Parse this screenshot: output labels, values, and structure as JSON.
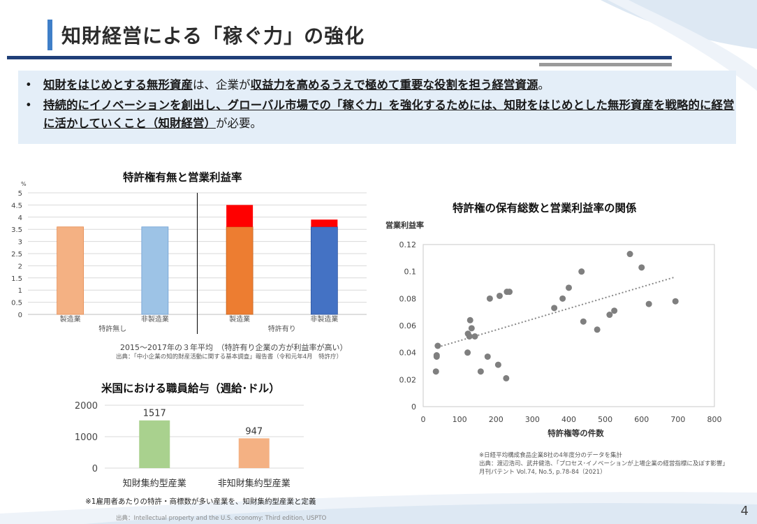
{
  "slide": {
    "title": "知財経営による「稼ぐ力」の強化",
    "page_number": "4"
  },
  "summary": {
    "bullet1": {
      "b1": "知財をはじめとする無形資産",
      "t1": "は、企業が",
      "b2": "収益力を高めるうえで",
      "b3": "極めて重要な役割を担う経営資源",
      "t2": "。"
    },
    "bullet2": {
      "b1": "持続的にイノベーションを創出し、グローバル市場での「稼ぐ力」を強化するためには、知財をはじめとした無形資産を戦略的に経営に活かしていくこと（知財経営）",
      "t1": "が必要。"
    }
  },
  "colors": {
    "accent": "#3f7fc8",
    "navy": "#1f3f78",
    "summary_bg": "#e4eef8"
  },
  "chart_data": [
    {
      "type": "bar",
      "title": "特許権有無と営業利益率",
      "ylabel": "%",
      "ylim": [
        0,
        5
      ],
      "yticks": [
        0,
        0.5,
        1,
        1.5,
        2,
        2.5,
        3,
        3.5,
        4,
        4.5,
        5
      ],
      "categories": [
        "製造業",
        "非製造業",
        "製造業",
        "非製造業"
      ],
      "groups": [
        "特許無し",
        "特許有り"
      ],
      "series": [
        {
          "values": [
            3.6,
            3.6,
            3.6,
            3.6
          ],
          "colors": [
            "#f4b183",
            "#9dc3e6",
            "#ed7d31",
            "#4472c4"
          ]
        },
        {
          "values": [
            0,
            0,
            0.9,
            0.3
          ],
          "color": "#ff0000"
        }
      ],
      "caption": "2015～2017年の３年平均　（特許有り企業の方が利益率が高い）",
      "source": "出典：「中小企業の知的財産活動に関する基本調査」報告書（令和元年4月　特許庁）"
    },
    {
      "type": "bar",
      "title": "米国における職員給与（週給･ドル）",
      "ylim": [
        0,
        2000
      ],
      "yticks": [
        0,
        1000,
        2000
      ],
      "categories": [
        "知財集約型産業",
        "非知財集約型産業"
      ],
      "values": [
        1517,
        947
      ],
      "data_labels": [
        "1517",
        "947"
      ],
      "colors": [
        "#a9d18e",
        "#f4b183"
      ],
      "note": "※1雇用者あたりの特許・商標数が多い産業を、知財集約型産業と定義",
      "source": "出典：Intellectual property and the U.S. economy: Third edition, USPTO"
    },
    {
      "type": "scatter",
      "title": "特許権の保有総数と営業利益率の関係",
      "ylabel": "営業利益率",
      "xlabel": "特許権等の件数",
      "xlim": [
        0,
        800
      ],
      "ylim": [
        0,
        0.12
      ],
      "xticks": [
        0,
        100,
        200,
        300,
        400,
        500,
        600,
        700,
        800
      ],
      "ytick_labels": [
        "0",
        "0.02",
        "0.04",
        "0.06",
        "0.08",
        "0.1",
        "0.12"
      ],
      "points": [
        [
          35,
          0.026
        ],
        [
          37,
          0.037
        ],
        [
          37,
          0.038
        ],
        [
          40,
          0.045
        ],
        [
          122,
          0.04
        ],
        [
          123,
          0.054
        ],
        [
          127,
          0.052
        ],
        [
          129,
          0.064
        ],
        [
          133,
          0.058
        ],
        [
          142,
          0.052
        ],
        [
          158,
          0.026
        ],
        [
          177,
          0.037
        ],
        [
          183,
          0.08
        ],
        [
          206,
          0.031
        ],
        [
          210,
          0.082
        ],
        [
          228,
          0.021
        ],
        [
          230,
          0.085
        ],
        [
          237,
          0.085
        ],
        [
          360,
          0.073
        ],
        [
          383,
          0.08
        ],
        [
          400,
          0.088
        ],
        [
          435,
          0.1
        ],
        [
          440,
          0.063
        ],
        [
          478,
          0.057
        ],
        [
          512,
          0.068
        ],
        [
          525,
          0.071
        ],
        [
          568,
          0.113
        ],
        [
          600,
          0.103
        ],
        [
          620,
          0.076
        ],
        [
          693,
          0.078
        ]
      ],
      "trendline": {
        "from": [
          40,
          0.044
        ],
        "to": [
          693,
          0.096
        ],
        "style": "dotted"
      },
      "note": "※日経平均構成食品企業8社の4年度分のデータを集計",
      "source1": "出典：渡辺浩司、武井健浩、｢プロセス･イノベーションが上場企業の経営指標に及ぼす影響｣",
      "source2": "月刊パテント Vol.74, No.5, p.78-84（2021）"
    }
  ]
}
